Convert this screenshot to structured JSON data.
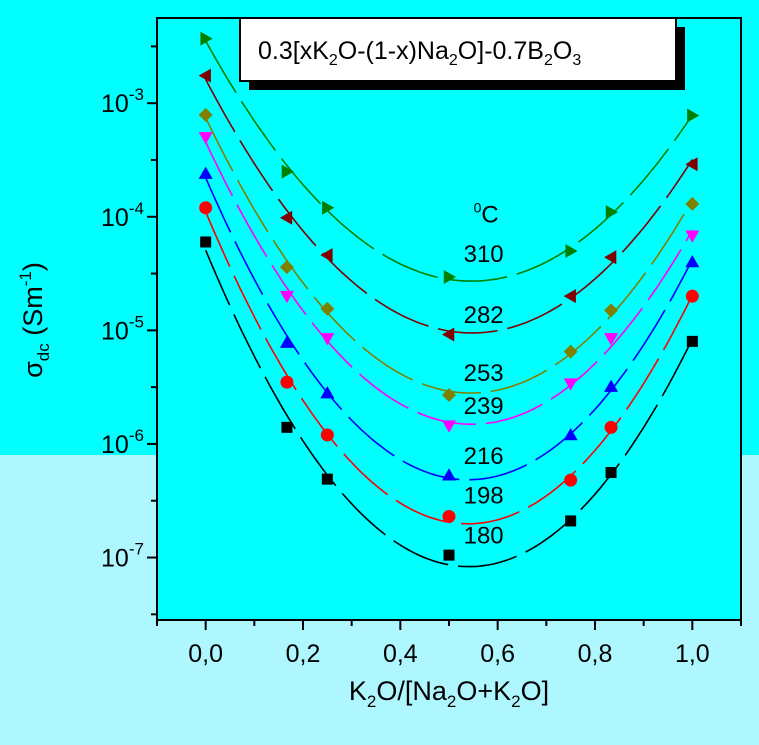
{
  "chart_data": {
    "type": "scatter",
    "title": "0.3[xK2O-(1-x)Na2O]-0.7B2O3",
    "title_parts": {
      "t1": "0.3[xK",
      "s1": "2",
      "t2": "O-(1-x)Na",
      "s2": "2",
      "t3": "O]-0.7B",
      "s3": "2",
      "t4": "O",
      "s4": "3"
    },
    "xlabel": "K2O/[Na2O+K2O]",
    "xlabel_parts": {
      "t1": "K",
      "s1": "2",
      "t2": "O/[Na",
      "s2": "2",
      "t3": "O+K",
      "s3": "2",
      "t4": "O]"
    },
    "ylabel": "σdc (Sm-1)",
    "ylabel_parts": {
      "sym": "σ",
      "sub": "dc",
      "t1": " (Sm",
      "sup": "-1",
      "t2": ")"
    },
    "xlim": [
      -0.1,
      1.1
    ],
    "ylim_log10": [
      -7.55,
      -2.25
    ],
    "yscale": "log",
    "x_ticks": [
      0.0,
      0.2,
      0.4,
      0.6,
      0.8,
      1.0
    ],
    "x_tick_labels": [
      "0,0",
      "0,2",
      "0,4",
      "0,6",
      "0,8",
      "1,0"
    ],
    "y_tick_exponents": [
      -7,
      -6,
      -5,
      -4,
      -3
    ],
    "y_tick_base": "10",
    "legend_header": {
      "sup": "0",
      "text": "C"
    },
    "grid": false,
    "series": [
      {
        "name": "180",
        "marker": "square",
        "color": "#000000",
        "x": [
          0.0,
          0.167,
          0.25,
          0.5,
          0.75,
          0.833,
          1.0
        ],
        "y": [
          6e-05,
          1.4e-06,
          4.9e-07,
          1.05e-07,
          2.1e-07,
          5.6e-07,
          8e-06
        ]
      },
      {
        "name": "198",
        "marker": "circle",
        "color": "#ff0000",
        "x": [
          0.0,
          0.167,
          0.25,
          0.5,
          0.75,
          0.833,
          1.0
        ],
        "y": [
          0.00012,
          3.5e-06,
          1.2e-06,
          2.3e-07,
          4.8e-07,
          1.4e-06,
          2e-05
        ]
      },
      {
        "name": "216",
        "marker": "triangle-up",
        "color": "#0000ff",
        "x": [
          0.0,
          0.167,
          0.25,
          0.5,
          0.75,
          0.833,
          1.0
        ],
        "y": [
          0.00024,
          7.8e-06,
          2.8e-06,
          5.3e-07,
          1.2e-06,
          3.2e-06,
          4e-05
        ]
      },
      {
        "name": "239",
        "marker": "triangle-down",
        "color": "#ff00ff",
        "x": [
          0.0,
          0.167,
          0.25,
          0.5,
          0.75,
          0.833,
          1.0
        ],
        "y": [
          0.0005,
          2e-05,
          8.5e-06,
          1.45e-06,
          3.4e-06,
          8.5e-06,
          6.8e-05
        ]
      },
      {
        "name": "253",
        "marker": "diamond",
        "color": "#808000",
        "x": [
          0.0,
          0.167,
          0.25,
          0.5,
          0.75,
          0.833,
          1.0
        ],
        "y": [
          0.00079,
          3.6e-05,
          1.55e-05,
          2.7e-06,
          6.5e-06,
          1.5e-05,
          0.00013
        ]
      },
      {
        "name": "282",
        "marker": "triangle-left",
        "color": "#800000",
        "x": [
          0.0,
          0.167,
          0.25,
          0.5,
          0.75,
          0.833,
          1.0
        ],
        "y": [
          0.00175,
          9.8e-05,
          4.6e-05,
          9.2e-06,
          2e-05,
          4.4e-05,
          0.00029
        ]
      },
      {
        "name": "310",
        "marker": "triangle-right",
        "color": "#008000",
        "x": [
          0.0,
          0.167,
          0.25,
          0.5,
          0.75,
          0.833,
          1.0
        ],
        "y": [
          0.0037,
          0.00025,
          0.00012,
          2.95e-05,
          5e-05,
          0.00011,
          0.00078
        ]
      }
    ],
    "series_label_x": 0.53,
    "series_label_y": [
      1.6e-07,
      3.6e-07,
      8e-07,
      2.2e-06,
      4.3e-06,
      1.4e-05,
      4.8e-05
    ],
    "legend_header_pos": [
      0.53,
      0.000105
    ]
  }
}
